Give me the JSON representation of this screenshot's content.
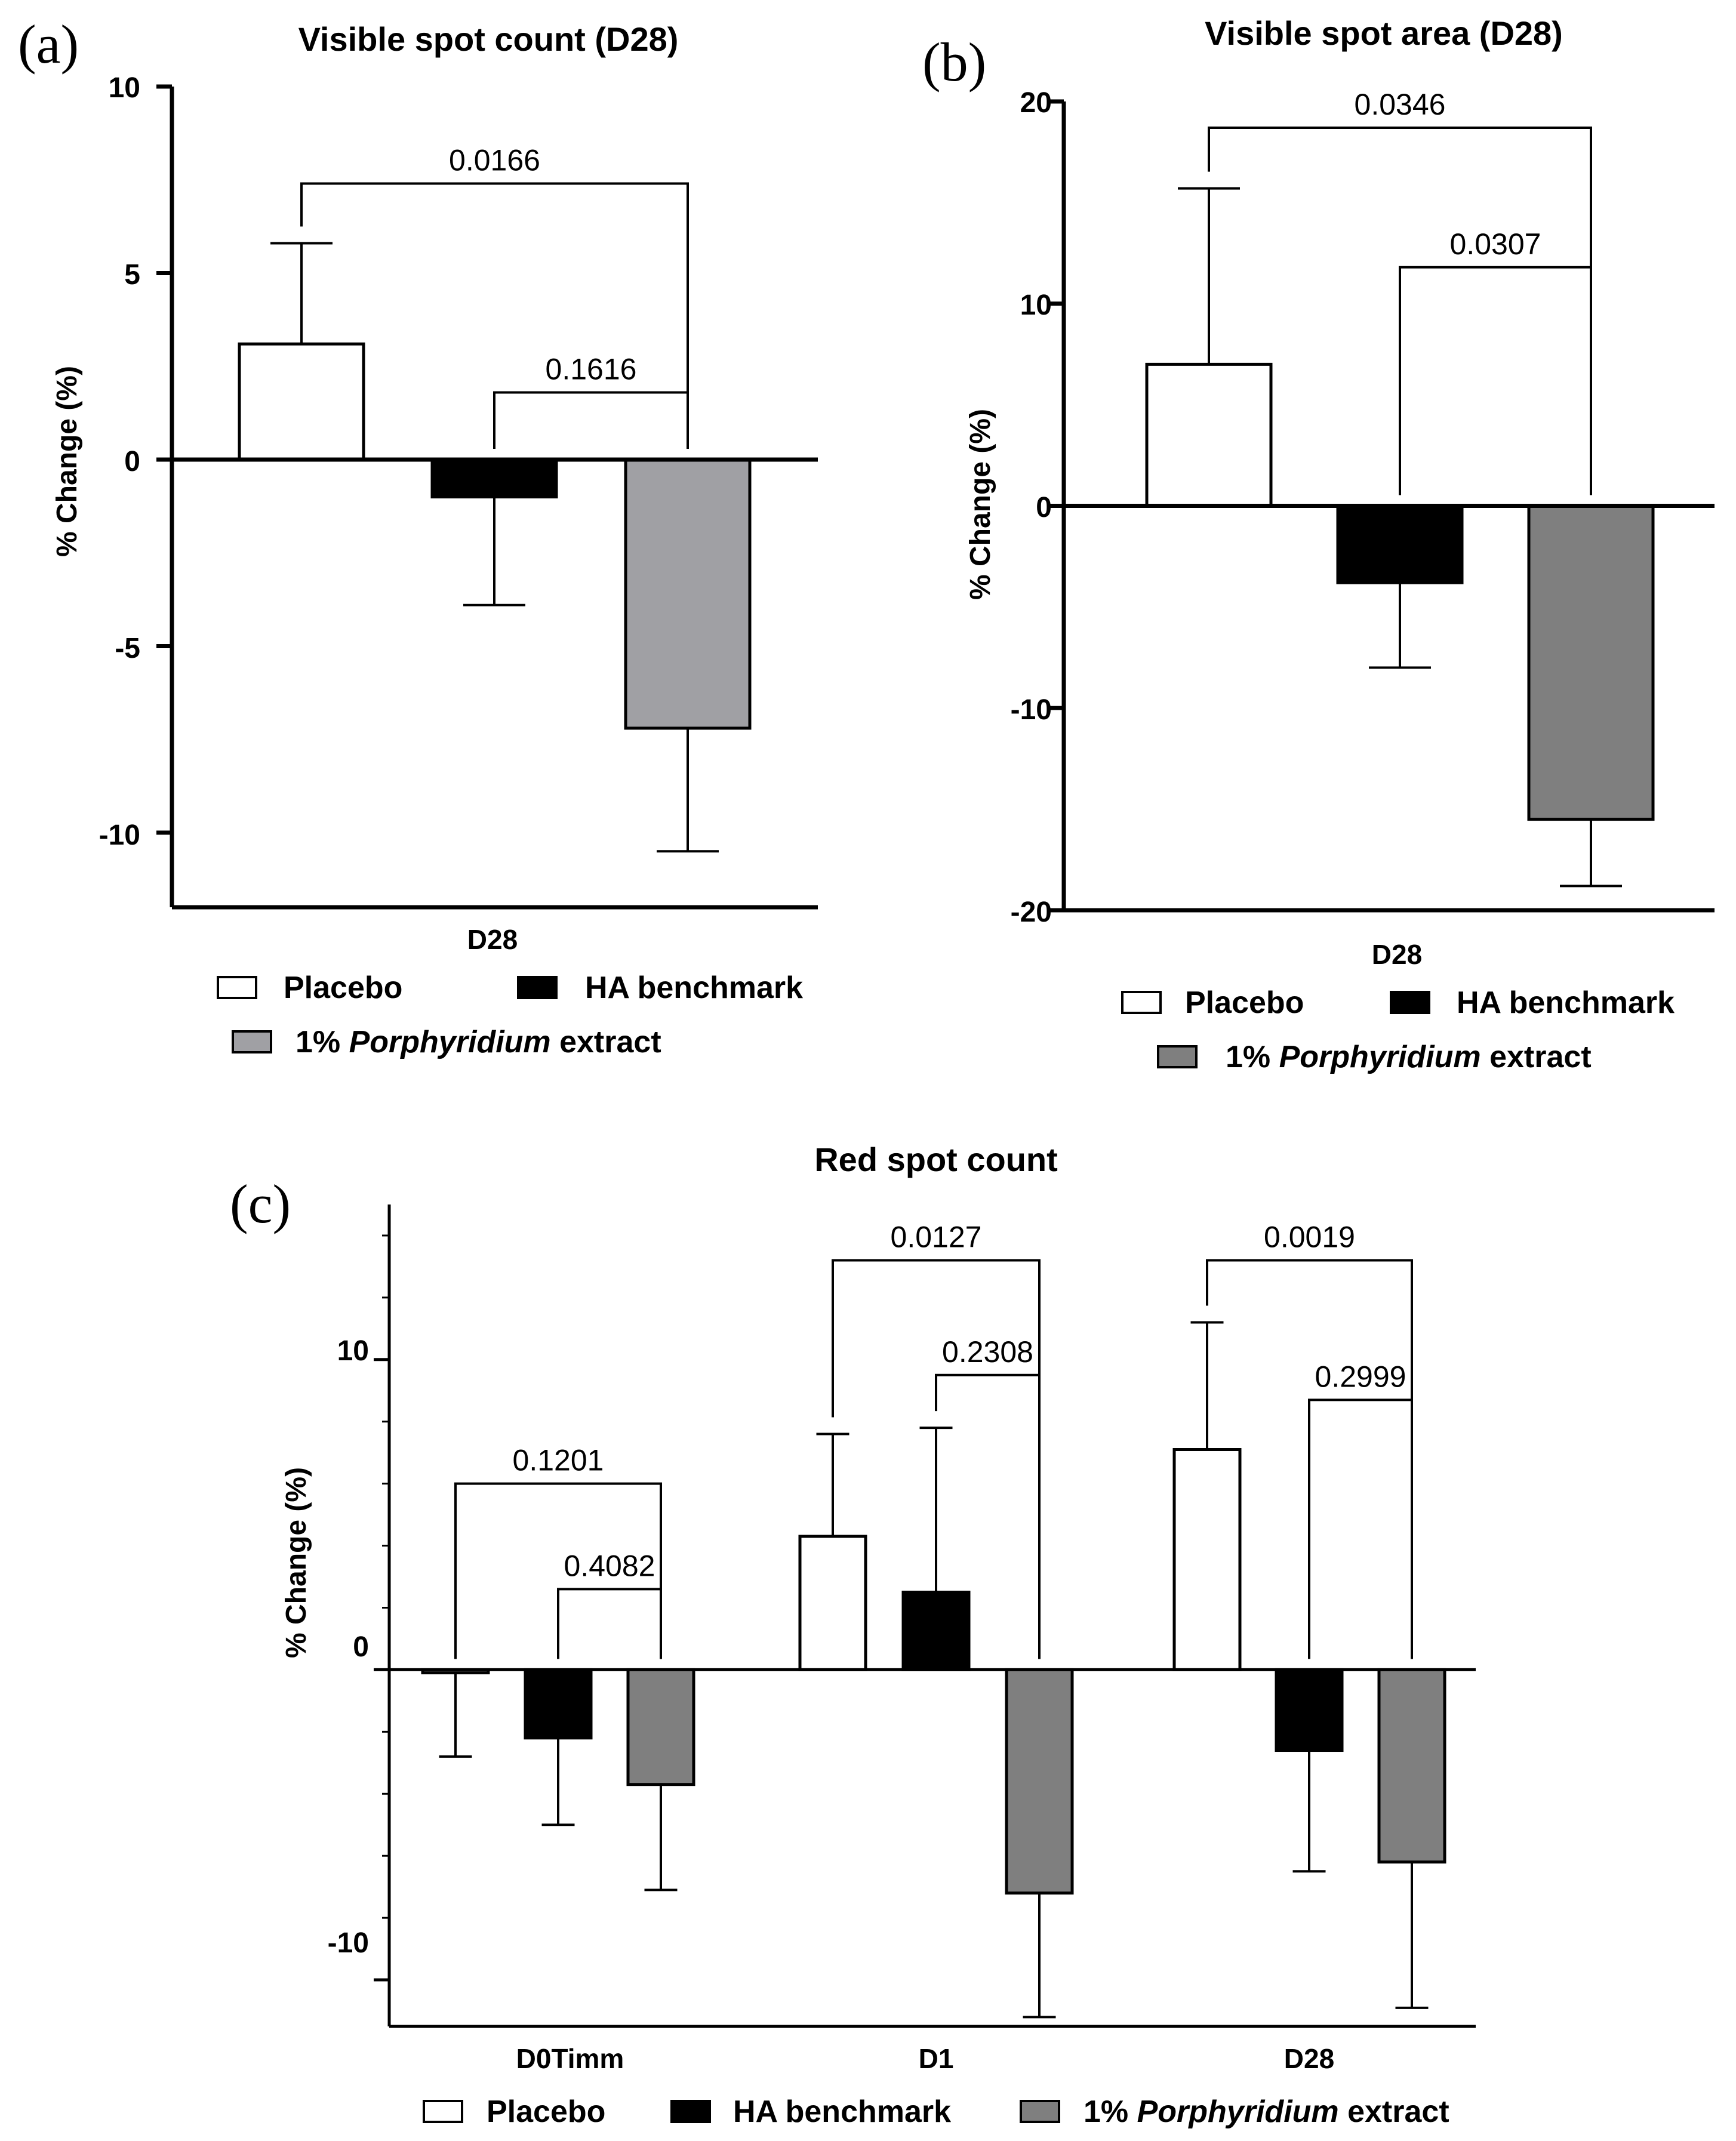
{
  "colors": {
    "placebo": "#ffffff",
    "ha_benchmark": "#000000",
    "porphyridium_a": "#a0a0a4",
    "porphyridium_bc": "#7f7f7f",
    "axis": "#000000"
  },
  "legend": {
    "placebo": "Placebo",
    "ha_benchmark": "HA benchmark",
    "porphyridium_prefix": "1% ",
    "porphyridium_italic": "Porphyridium",
    "porphyridium_suffix": " extract"
  },
  "chart_data": [
    {
      "panel": "(a)",
      "type": "bar",
      "title": "Visible spot  count (D28)",
      "ylabel": "% Change (%)",
      "xlabel": "",
      "categories": [
        "D28"
      ],
      "ylim": [
        -12,
        10
      ],
      "yticks": [
        10,
        5,
        0,
        -5,
        -10
      ],
      "ytick_labels": [
        "10",
        "5",
        "0",
        "-5",
        "-10"
      ],
      "series": [
        {
          "name": "Placebo",
          "values": [
            3.1
          ],
          "errors": [
            2.7
          ]
        },
        {
          "name": "HA benchmark",
          "values": [
            -1.0
          ],
          "errors": [
            2.9
          ]
        },
        {
          "name": "1% Porphyridium extract",
          "values": [
            -7.2
          ],
          "errors": [
            3.3
          ]
        }
      ],
      "comparisons": [
        {
          "label": "0.0166",
          "from": 0,
          "to": 2,
          "level": 7.4
        },
        {
          "label": "0.1616",
          "from": 1,
          "to": 2,
          "level": 1.8
        }
      ]
    },
    {
      "panel": "(b)",
      "type": "bar",
      "title": "Visible spot  area (D28)",
      "ylabel": "% Change (%)",
      "xlabel": "",
      "categories": [
        "D28"
      ],
      "ylim": [
        -20,
        20
      ],
      "yticks": [
        20,
        10,
        0,
        -10,
        -20
      ],
      "ytick_labels": [
        "20",
        "10",
        "0",
        "-10",
        "-20"
      ],
      "series": [
        {
          "name": "Placebo",
          "values": [
            7.0
          ],
          "errors": [
            8.7
          ]
        },
        {
          "name": "HA benchmark",
          "values": [
            -3.8
          ],
          "errors": [
            4.2
          ]
        },
        {
          "name": "1% Porphyridium extract",
          "values": [
            -15.5
          ],
          "errors": [
            3.3
          ]
        }
      ],
      "comparisons": [
        {
          "label": "0.0346",
          "from": 0,
          "to": 2,
          "level": 18.7
        },
        {
          "label": "0.0307",
          "from": 1,
          "to": 2,
          "level": 11.8
        }
      ]
    },
    {
      "panel": "(c)",
      "type": "bar",
      "title": "Red spot  count",
      "ylabel": "% Change (%)",
      "xlabel": "",
      "categories": [
        "D0Timm",
        "D1",
        "D28"
      ],
      "ylim": [
        -11.5,
        15
      ],
      "yticks": [
        10,
        0,
        -10
      ],
      "ytick_labels": [
        "10",
        "0",
        "-10"
      ],
      "series": [
        {
          "name": "Placebo",
          "values": [
            -0.1,
            4.3,
            7.1
          ],
          "errors": [
            2.7,
            3.3,
            4.1
          ]
        },
        {
          "name": "HA benchmark",
          "values": [
            -2.2,
            2.5,
            -2.6
          ],
          "errors": [
            2.8,
            5.3,
            3.9
          ]
        },
        {
          "name": "1% Porphyridium extract",
          "values": [
            -3.7,
            -7.2,
            -6.2
          ],
          "errors": [
            3.4,
            4.0,
            4.7
          ]
        }
      ],
      "comparisons": [
        {
          "label": "0.1201",
          "group": 0,
          "from": 0,
          "to": 2,
          "level": 6.0
        },
        {
          "label": "0.4082",
          "group": 0,
          "from": 1,
          "to": 2,
          "level": 2.6
        },
        {
          "label": "0.0127",
          "group": 1,
          "from": 0,
          "to": 2,
          "level": 13.2
        },
        {
          "label": "0.2308",
          "group": 1,
          "from": 1,
          "to": 2,
          "level": 9.5
        },
        {
          "label": "0.0019",
          "group": 2,
          "from": 0,
          "to": 2,
          "level": 13.2
        },
        {
          "label": "0.2999",
          "group": 2,
          "from": 1,
          "to": 2,
          "level": 8.7
        }
      ]
    }
  ]
}
